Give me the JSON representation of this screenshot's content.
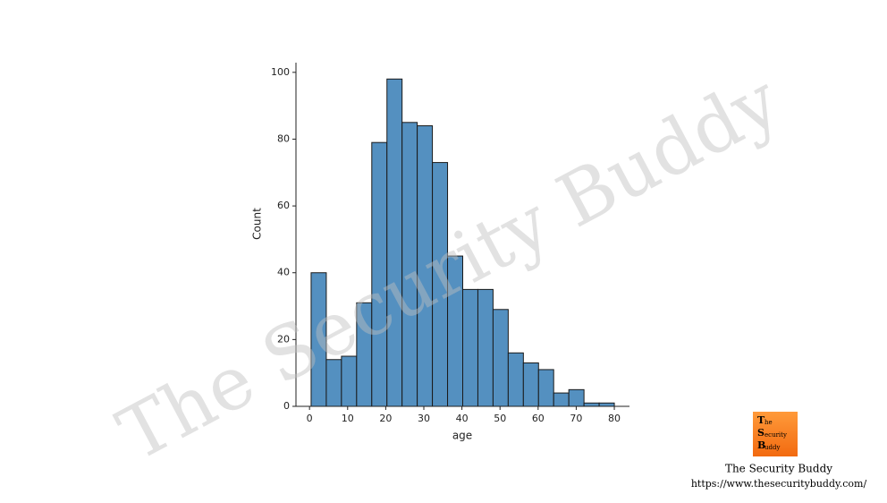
{
  "chart_data": {
    "type": "histogram",
    "bins": [
      0.42,
      4.4,
      8.38,
      12.36,
      16.34,
      20.32,
      24.29,
      28.27,
      32.25,
      36.23,
      40.21,
      44.19,
      48.17,
      52.15,
      56.13,
      60.11,
      64.08,
      68.06,
      72.04,
      76.02,
      80.0
    ],
    "values": [
      40,
      14,
      15,
      31,
      79,
      98,
      85,
      84,
      73,
      45,
      35,
      35,
      29,
      16,
      13,
      11,
      4,
      5,
      1,
      1
    ],
    "color": "#5490c0",
    "xlabel": "age",
    "ylabel": "Count",
    "xlim": [
      -3.56,
      83.98
    ],
    "ylim": [
      0,
      102.9
    ],
    "xticks": [
      0,
      10,
      20,
      30,
      40,
      50,
      60,
      70,
      80
    ],
    "yticks": [
      0,
      20,
      40,
      60,
      80,
      100
    ],
    "grid": false
  },
  "watermark": "The Security Buddy",
  "logo": [
    "T",
    "he",
    "S",
    "ecurity",
    "B",
    "uddy"
  ],
  "brand": "The Security Buddy",
  "url": "https://www.thesecuritybuddy.com/"
}
